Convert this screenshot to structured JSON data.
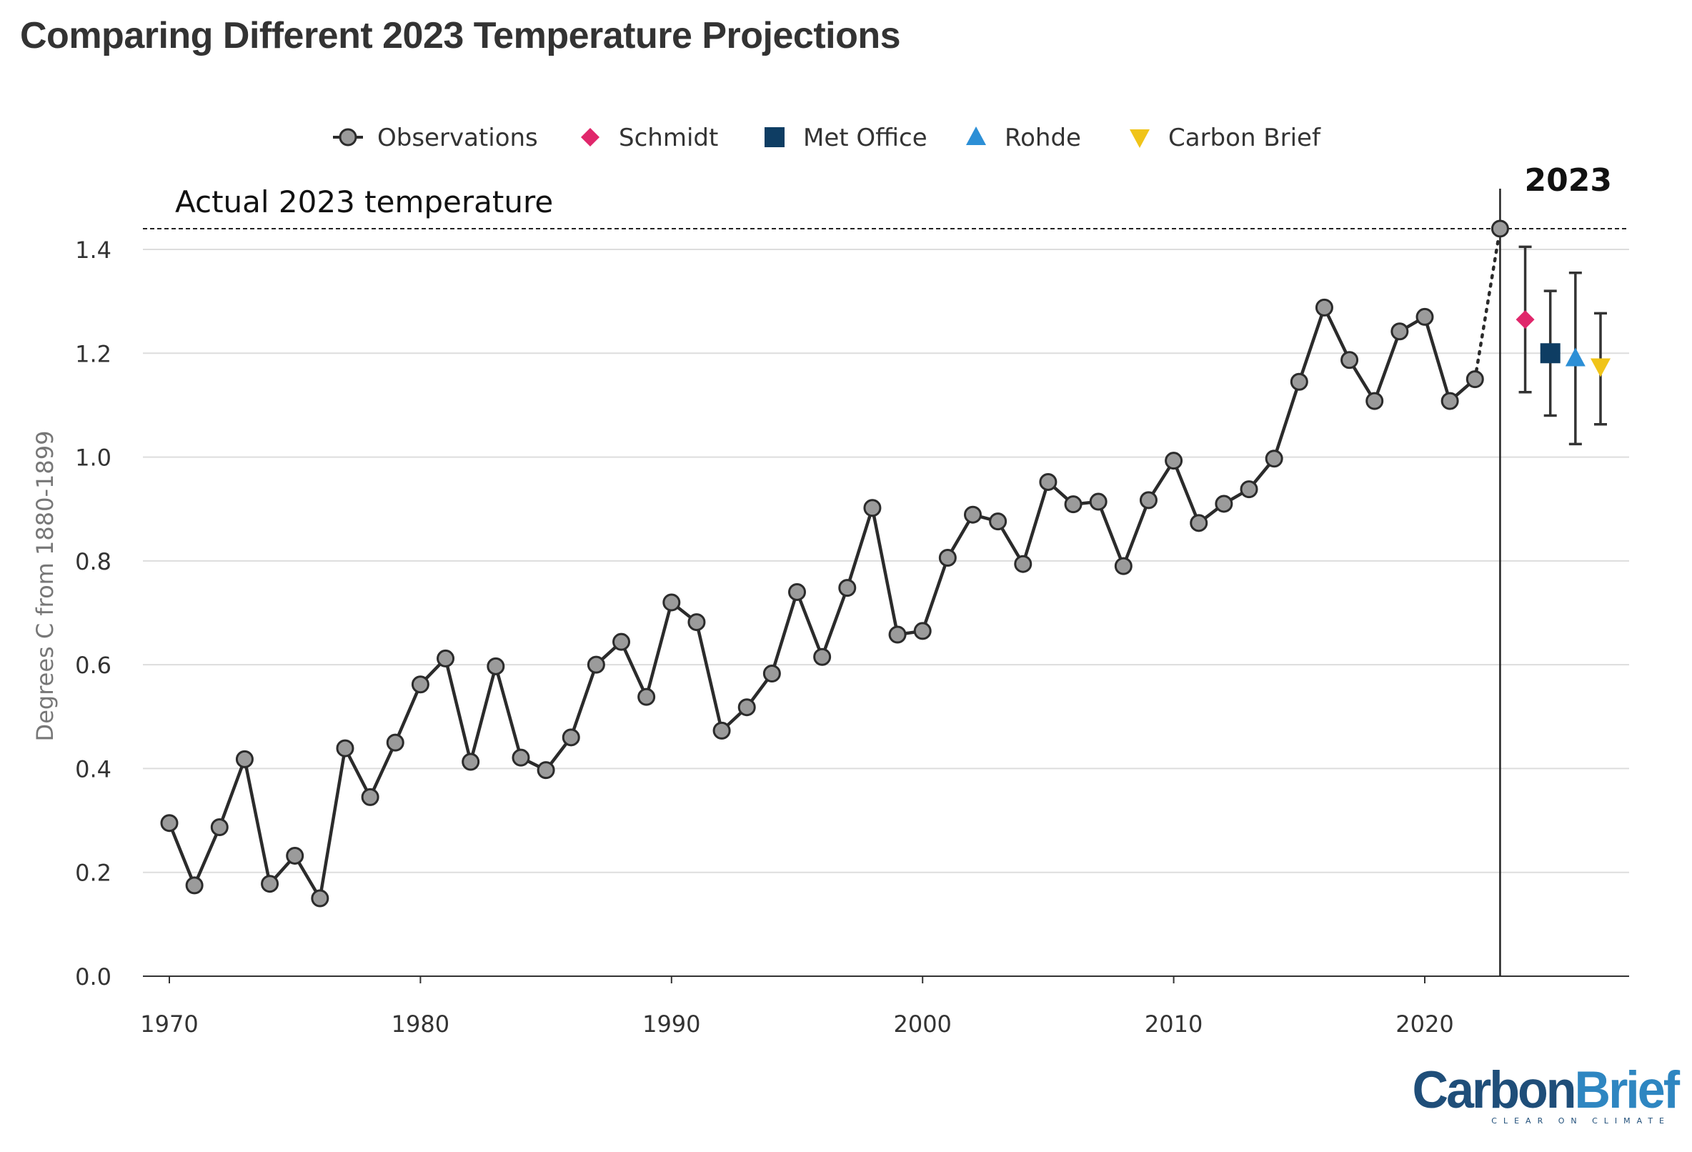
{
  "title": "Comparing Different 2023 Temperature Projections",
  "chart_data": {
    "type": "line",
    "title": "Comparing Different 2023 Temperature Projections",
    "ylabel": "Degrees C from 1880-1899",
    "xlabel": "",
    "xlim": [
      1969,
      2028
    ],
    "ylim": [
      0,
      1.5
    ],
    "x_ticks": [
      1970,
      1980,
      1990,
      2000,
      2010,
      2020
    ],
    "y_ticks": [
      0.0,
      0.2,
      0.4,
      0.6,
      0.8,
      1.0,
      1.2,
      1.4
    ],
    "grid": "horizontal",
    "legend_position": "top",
    "reference_line": {
      "label": "Actual 2023 temperature",
      "value": 1.44
    },
    "marker_line": {
      "label": "2023",
      "x": 2023
    },
    "series": [
      {
        "name": "Observations",
        "color": "#2b2b2b",
        "marker_fill": "#9b9b9b",
        "x": [
          1970,
          1971,
          1972,
          1973,
          1974,
          1975,
          1976,
          1977,
          1978,
          1979,
          1980,
          1981,
          1982,
          1983,
          1984,
          1985,
          1986,
          1987,
          1988,
          1989,
          1990,
          1991,
          1992,
          1993,
          1994,
          1995,
          1996,
          1997,
          1998,
          1999,
          2000,
          2001,
          2002,
          2003,
          2004,
          2005,
          2006,
          2007,
          2008,
          2009,
          2010,
          2011,
          2012,
          2013,
          2014,
          2015,
          2016,
          2017,
          2018,
          2019,
          2020,
          2021,
          2022,
          2023
        ],
        "values": [
          0.295,
          0.175,
          0.287,
          0.418,
          0.178,
          0.232,
          0.15,
          0.439,
          0.345,
          0.45,
          0.562,
          0.612,
          0.413,
          0.597,
          0.421,
          0.397,
          0.46,
          0.6,
          0.644,
          0.538,
          0.72,
          0.682,
          0.473,
          0.518,
          0.583,
          0.74,
          0.615,
          0.748,
          0.902,
          0.658,
          0.665,
          0.806,
          0.889,
          0.876,
          0.794,
          0.952,
          0.909,
          0.914,
          0.79,
          0.917,
          0.993,
          0.873,
          0.91,
          0.938,
          0.997,
          1.145,
          1.288,
          1.187,
          1.108,
          1.242,
          1.27,
          1.108,
          1.15,
          1.44
        ]
      }
    ],
    "projections": [
      {
        "name": "Schmidt",
        "x": 2024.0,
        "value": 1.265,
        "low": 1.125,
        "high": 1.405,
        "color": "#e0276b",
        "marker": "diamond"
      },
      {
        "name": "Met Office",
        "x": 2025.0,
        "value": 1.2,
        "low": 1.08,
        "high": 1.32,
        "color": "#0e3d63",
        "marker": "square"
      },
      {
        "name": "Rohde",
        "x": 2026.0,
        "value": 1.19,
        "low": 1.025,
        "high": 1.355,
        "color": "#2c8fd6",
        "marker": "triangle-up"
      },
      {
        "name": "Carbon Brief",
        "x": 2027.0,
        "value": 1.175,
        "low": 1.063,
        "high": 1.277,
        "color": "#f0c419",
        "marker": "triangle-down"
      }
    ]
  },
  "logo": {
    "main_a": "Carbon",
    "main_b": "Brief",
    "tagline": "CLEAR ON CLIMATE"
  }
}
